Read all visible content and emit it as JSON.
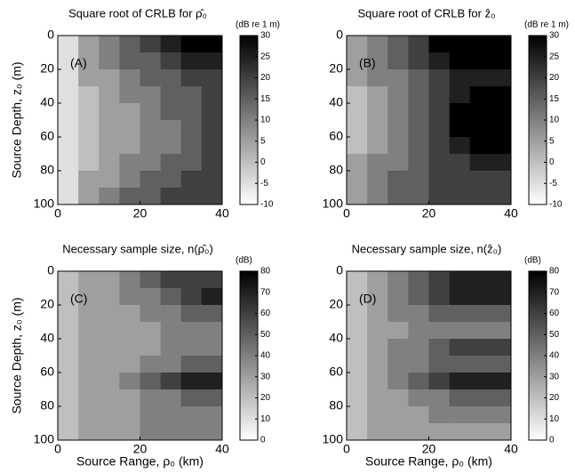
{
  "chart_data": [
    {
      "type": "heatmap",
      "title": "Square root of CRLB for ρ̂₀",
      "panel_label": "(A)",
      "colorbar_label": "(dB re 1 m)",
      "ylabel": "Source Depth, z₀ (m)",
      "xlim": [
        0,
        40
      ],
      "xticks": [
        0,
        20,
        40
      ],
      "ylim": [
        0,
        100
      ],
      "y_inverted": true,
      "yticks": [
        0,
        20,
        40,
        60,
        80,
        100
      ],
      "clim": [
        -10,
        30
      ],
      "cticks": [
        -10,
        -5,
        0,
        5,
        10,
        15,
        20,
        25,
        30
      ],
      "colormap": [
        "#ffffff",
        "#000000"
      ],
      "xbins": [
        0,
        5,
        10,
        15,
        20,
        25,
        30,
        35,
        40
      ],
      "ybins": [
        0,
        10,
        20,
        30,
        40,
        50,
        60,
        70,
        80,
        90,
        100
      ],
      "z": [
        [
          -5,
          5,
          10,
          15,
          20,
          25,
          30,
          30
        ],
        [
          -5,
          5,
          10,
          15,
          15,
          20,
          25,
          25
        ],
        [
          -5,
          5,
          5,
          10,
          15,
          15,
          20,
          20
        ],
        [
          -5,
          0,
          5,
          10,
          10,
          15,
          15,
          20
        ],
        [
          -5,
          0,
          5,
          5,
          10,
          15,
          15,
          20
        ],
        [
          -5,
          0,
          5,
          5,
          10,
          10,
          15,
          20
        ],
        [
          -5,
          0,
          5,
          5,
          10,
          10,
          15,
          20
        ],
        [
          -5,
          0,
          5,
          10,
          10,
          15,
          15,
          20
        ],
        [
          -5,
          5,
          5,
          10,
          15,
          15,
          20,
          20
        ],
        [
          -5,
          5,
          10,
          15,
          15,
          20,
          20,
          20
        ]
      ]
    },
    {
      "type": "heatmap",
      "title": "Square root of CRLB for ẑ₀",
      "panel_label": "(B)",
      "colorbar_label": "(dB re 1 m)",
      "xlim": [
        0,
        40
      ],
      "xticks": [
        0,
        20,
        40
      ],
      "ylim": [
        0,
        100
      ],
      "y_inverted": true,
      "yticks": [
        0,
        20,
        40,
        60,
        80,
        100
      ],
      "clim": [
        -10,
        30
      ],
      "cticks": [
        -10,
        -5,
        0,
        5,
        10,
        15,
        20,
        25,
        30
      ],
      "colormap": [
        "#ffffff",
        "#000000"
      ],
      "xbins": [
        0,
        5,
        10,
        15,
        20,
        25,
        30,
        35,
        40
      ],
      "ybins": [
        0,
        10,
        20,
        30,
        40,
        50,
        60,
        70,
        80,
        90,
        100
      ],
      "z": [
        [
          5,
          10,
          15,
          20,
          30,
          30,
          30,
          30
        ],
        [
          5,
          10,
          15,
          20,
          25,
          30,
          30,
          30
        ],
        [
          5,
          10,
          10,
          15,
          20,
          25,
          25,
          25
        ],
        [
          0,
          5,
          10,
          15,
          20,
          25,
          30,
          30
        ],
        [
          0,
          5,
          10,
          15,
          20,
          30,
          30,
          30
        ],
        [
          0,
          5,
          10,
          15,
          20,
          30,
          30,
          30
        ],
        [
          0,
          5,
          10,
          15,
          20,
          25,
          30,
          30
        ],
        [
          5,
          10,
          10,
          15,
          20,
          20,
          25,
          25
        ],
        [
          5,
          10,
          15,
          15,
          20,
          20,
          20,
          20
        ],
        [
          5,
          10,
          15,
          15,
          20,
          20,
          20,
          20
        ]
      ]
    },
    {
      "type": "heatmap",
      "title": "Necessary sample size, n(ρ̂₀)",
      "panel_label": "(C)",
      "colorbar_label": "(dB)",
      "ylabel": "Source Depth, z₀ (m)",
      "xlabel": "Source Range, ρ₀ (km)",
      "xlim": [
        0,
        40
      ],
      "xticks": [
        0,
        20,
        40
      ],
      "ylim": [
        0,
        100
      ],
      "y_inverted": true,
      "yticks": [
        0,
        20,
        40,
        60,
        80,
        100
      ],
      "clim": [
        0,
        80
      ],
      "cticks": [
        0,
        10,
        20,
        30,
        40,
        50,
        60,
        70,
        80
      ],
      "colormap": [
        "#ffffff",
        "#000000"
      ],
      "xbins": [
        0,
        5,
        10,
        15,
        20,
        25,
        30,
        35,
        40
      ],
      "ybins": [
        0,
        10,
        20,
        30,
        40,
        50,
        60,
        70,
        80,
        90,
        100
      ],
      "z": [
        [
          20,
          30,
          30,
          40,
          50,
          60,
          60,
          60
        ],
        [
          20,
          30,
          30,
          40,
          40,
          50,
          60,
          70
        ],
        [
          20,
          30,
          30,
          30,
          40,
          40,
          50,
          50
        ],
        [
          20,
          30,
          30,
          30,
          30,
          40,
          40,
          40
        ],
        [
          20,
          30,
          30,
          30,
          30,
          40,
          40,
          40
        ],
        [
          20,
          30,
          30,
          30,
          40,
          40,
          50,
          50
        ],
        [
          20,
          30,
          30,
          40,
          50,
          60,
          70,
          70
        ],
        [
          20,
          30,
          30,
          30,
          40,
          40,
          50,
          50
        ],
        [
          20,
          30,
          30,
          30,
          40,
          40,
          40,
          40
        ],
        [
          20,
          30,
          30,
          30,
          40,
          40,
          40,
          40
        ]
      ]
    },
    {
      "type": "heatmap",
      "title": "Necessary sample size, n(ẑ₀)",
      "panel_label": "(D)",
      "colorbar_label": "(dB)",
      "xlabel": "Source Range, ρ₀ (km)",
      "xlim": [
        0,
        40
      ],
      "xticks": [
        0,
        20,
        40
      ],
      "ylim": [
        0,
        100
      ],
      "y_inverted": true,
      "yticks": [
        0,
        20,
        40,
        60,
        80,
        100
      ],
      "clim": [
        0,
        80
      ],
      "cticks": [
        0,
        10,
        20,
        30,
        40,
        50,
        60,
        70,
        80
      ],
      "colormap": [
        "#ffffff",
        "#000000"
      ],
      "xbins": [
        0,
        5,
        10,
        15,
        20,
        25,
        30,
        35,
        40
      ],
      "ybins": [
        0,
        10,
        20,
        30,
        40,
        50,
        60,
        70,
        80,
        90,
        100
      ],
      "z": [
        [
          20,
          30,
          40,
          50,
          60,
          70,
          70,
          70
        ],
        [
          20,
          30,
          40,
          50,
          60,
          70,
          70,
          70
        ],
        [
          20,
          30,
          40,
          40,
          50,
          50,
          50,
          50
        ],
        [
          20,
          30,
          30,
          40,
          40,
          40,
          40,
          40
        ],
        [
          20,
          30,
          40,
          40,
          50,
          60,
          60,
          60
        ],
        [
          20,
          30,
          40,
          40,
          50,
          50,
          50,
          50
        ],
        [
          20,
          30,
          40,
          50,
          60,
          70,
          70,
          70
        ],
        [
          20,
          30,
          30,
          40,
          40,
          50,
          50,
          50
        ],
        [
          20,
          30,
          30,
          30,
          40,
          40,
          40,
          40
        ],
        [
          20,
          30,
          30,
          30,
          30,
          30,
          30,
          30
        ]
      ]
    }
  ]
}
